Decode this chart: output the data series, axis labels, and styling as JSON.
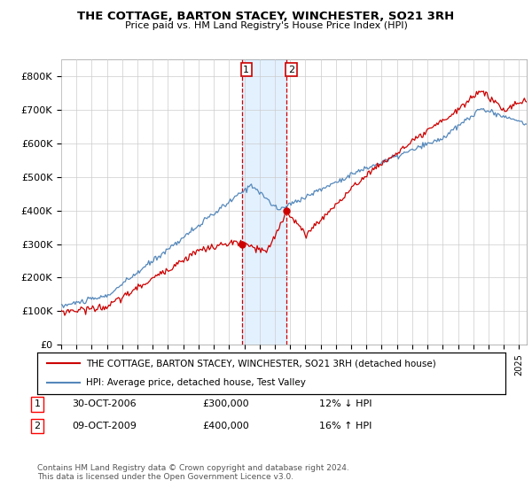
{
  "title": "THE COTTAGE, BARTON STACEY, WINCHESTER, SO21 3RH",
  "subtitle": "Price paid vs. HM Land Registry's House Price Index (HPI)",
  "ylabel_ticks": [
    "£0",
    "£100K",
    "£200K",
    "£300K",
    "£400K",
    "£500K",
    "£600K",
    "£700K",
    "£800K"
  ],
  "ytick_values": [
    0,
    100000,
    200000,
    300000,
    400000,
    500000,
    600000,
    700000,
    800000
  ],
  "ylim": [
    0,
    850000
  ],
  "xlim_start": 1995.0,
  "xlim_end": 2025.5,
  "sale1_date": 2006.83,
  "sale1_price": 300000,
  "sale2_date": 2009.78,
  "sale2_price": 400000,
  "legend_line1": "THE COTTAGE, BARTON STACEY, WINCHESTER, SO21 3RH (detached house)",
  "legend_line2": "HPI: Average price, detached house, Test Valley",
  "table_row1_date": "30-OCT-2006",
  "table_row1_price": "£300,000",
  "table_row1_hpi": "12% ↓ HPI",
  "table_row2_date": "09-OCT-2009",
  "table_row2_price": "£400,000",
  "table_row2_hpi": "16% ↑ HPI",
  "footnote": "Contains HM Land Registry data © Crown copyright and database right 2024.\nThis data is licensed under the Open Government Licence v3.0.",
  "red_color": "#cc0000",
  "blue_color": "#5588bb",
  "highlight_fill": "#ddeeff",
  "grid_color": "#cccccc"
}
